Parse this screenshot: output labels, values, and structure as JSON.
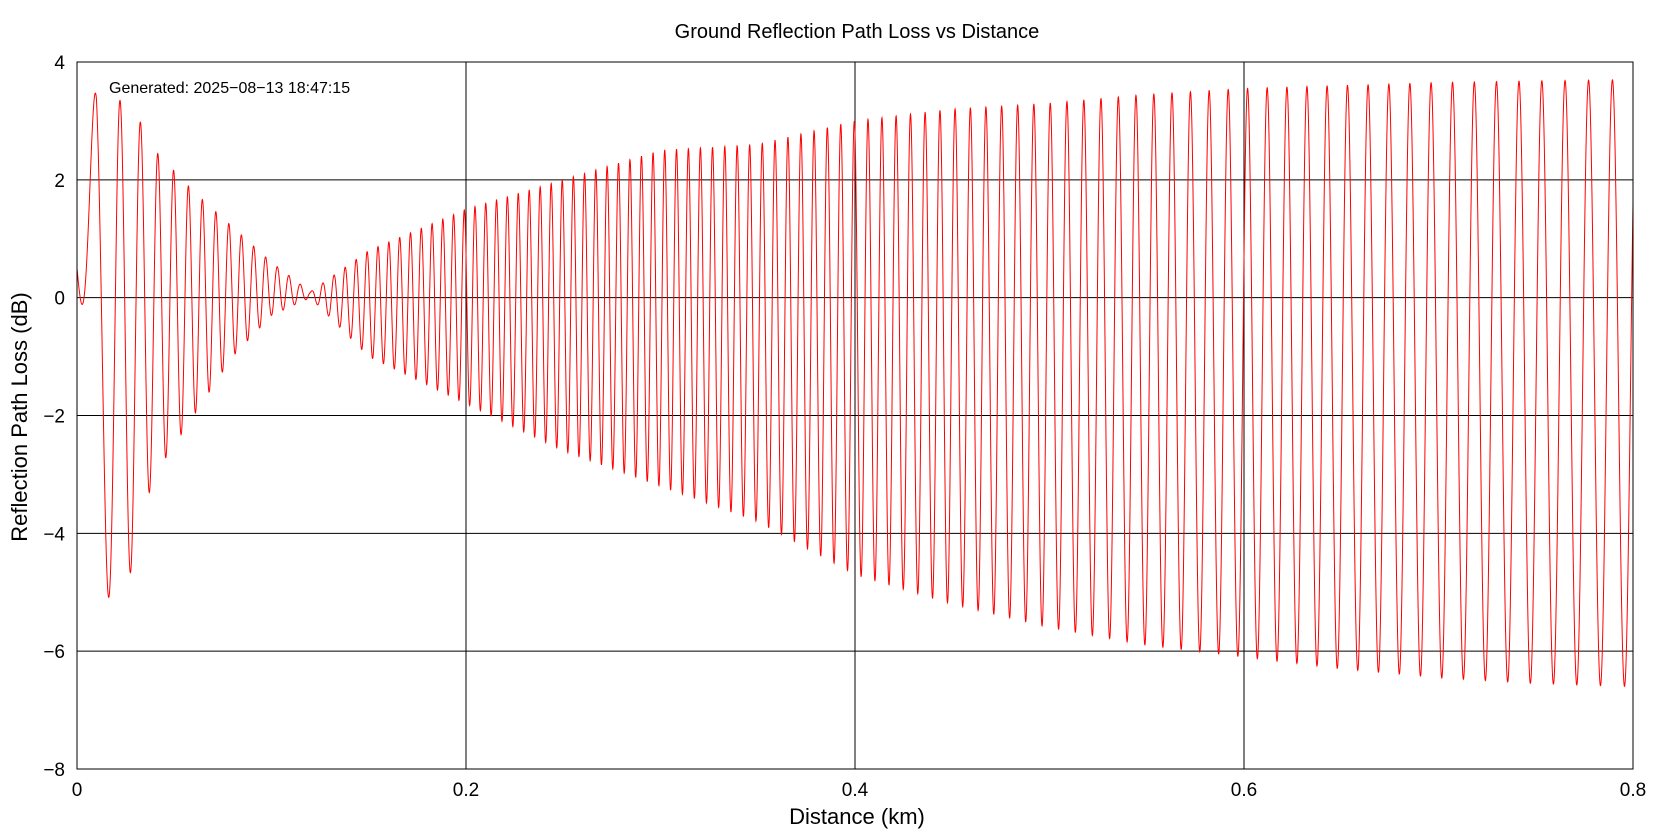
{
  "chart_data": {
    "type": "line",
    "title": "Ground Reflection Path Loss vs Distance",
    "xlabel": "Distance (km)",
    "ylabel": "Reflection Path Loss (dB)",
    "xlim": [
      0,
      0.8
    ],
    "ylim": [
      -8,
      4
    ],
    "x_ticks": [
      0,
      0.2,
      0.4,
      0.6,
      0.8
    ],
    "x_tick_labels": [
      "0",
      "0.2",
      "0.4",
      "0.6",
      "0.8"
    ],
    "y_ticks": [
      -8,
      -6,
      -4,
      -2,
      0,
      2,
      4
    ],
    "y_tick_labels": [
      "−8",
      "−6",
      "−4",
      "−2",
      "0",
      "2",
      "4"
    ],
    "grid": true,
    "annotation": "Generated: 2025−08−13 18:47:15",
    "series": [
      {
        "color": "#ff0000",
        "description": "rapidly oscillating path-loss curve; envelope of maxima and minima (dB) at sampled distances (km)",
        "envelope_x": [
          0.0,
          0.01,
          0.02,
          0.03,
          0.04,
          0.06,
          0.08,
          0.1,
          0.12,
          0.15,
          0.2,
          0.25,
          0.3,
          0.35,
          0.4,
          0.45,
          0.5,
          0.55,
          0.6,
          0.65,
          0.7,
          0.75,
          0.8
        ],
        "envelope_max": [
          0.5,
          3.75,
          3.4,
          3.15,
          2.5,
          1.8,
          1.2,
          0.6,
          0.1,
          0.8,
          1.5,
          2.0,
          2.5,
          2.6,
          3.0,
          3.2,
          3.3,
          3.45,
          3.55,
          3.6,
          3.65,
          3.68,
          3.7
        ],
        "envelope_min": [
          0.5,
          -3.0,
          -6.4,
          -4.1,
          -3.0,
          -2.0,
          -1.0,
          -0.3,
          0.0,
          -1.0,
          -1.8,
          -2.6,
          -3.2,
          -3.8,
          -4.7,
          -5.2,
          -5.6,
          -5.9,
          -6.1,
          -6.3,
          -6.45,
          -6.55,
          -6.6
        ],
        "oscillation_period_km": [
          0.02,
          0.015,
          0.012,
          0.01,
          0.0085,
          0.0072,
          0.0065,
          0.006,
          0.0058,
          0.0056,
          0.0055,
          0.0057,
          0.006,
          0.0065,
          0.007,
          0.0078,
          0.0085,
          0.0092,
          0.01,
          0.0105,
          0.011,
          0.0118,
          0.0125
        ]
      }
    ]
  }
}
